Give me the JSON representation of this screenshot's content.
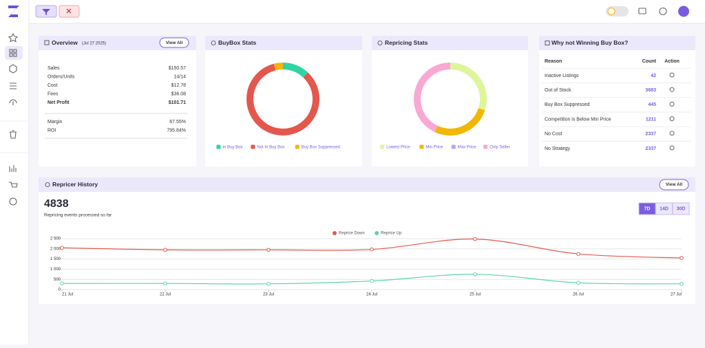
{
  "overview": {
    "title": "Overview",
    "date": "(Jul 27 2025)",
    "button": "View All",
    "rows": [
      [
        "Sales",
        "$150.57"
      ],
      [
        "Orders/Units",
        "14/14"
      ],
      [
        "Cost",
        "$12.78"
      ],
      [
        "Fees",
        "$36.08"
      ],
      [
        "Net Profit",
        "$101.71"
      ]
    ],
    "rows2": [
      [
        "Margin",
        "67.55%"
      ],
      [
        "ROI",
        "795.84%"
      ]
    ]
  },
  "why_not": {
    "title": "Why not Winning Buy Box?",
    "columns": [
      "Reason",
      "Count",
      "Action"
    ],
    "rows": [
      [
        "Inactive Listings",
        42
      ],
      [
        "Out of Stock",
        3683
      ],
      [
        "Buy Box Suppressed",
        445
      ],
      [
        "Competition is Below Min Price",
        1211
      ],
      [
        "No Cost",
        2337
      ],
      [
        "No Strategy",
        2337
      ]
    ]
  },
  "history": {
    "title": "Repricer History",
    "button": "View All",
    "total": 4838,
    "caption": "Repricing events processed so far",
    "ranges": [
      "7D",
      "14D",
      "30D"
    ]
  },
  "chart_data": [
    {
      "type": "donut",
      "title": "BuyBox Stats",
      "categories": [
        "In Buy Box",
        "Not In Buy Box",
        "Buy Box Suppressed"
      ],
      "values": [
        12,
        84,
        4
      ],
      "colors": [
        "#2dd4a4",
        "#e4574c",
        "#f5b40e"
      ]
    },
    {
      "type": "donut",
      "title": "Repricing Stats",
      "categories": [
        "Lowest Price",
        "Min Price",
        "Max Price",
        "Only Seller"
      ],
      "values": [
        30,
        27,
        0,
        43
      ],
      "colors": [
        "#dff59a",
        "#f2b705",
        "#b7a5f5",
        "#f9a8d4"
      ]
    },
    {
      "type": "line",
      "categories": [
        "21 Jul",
        "22 Jul",
        "23 Jul",
        "24 Jul",
        "25 Jul",
        "26 Jul",
        "27 Jul"
      ],
      "series": [
        {
          "name": "Reprice Down",
          "color": "#e4574c",
          "values": [
            2050,
            1950,
            1950,
            1970,
            2480,
            1750,
            1550
          ]
        },
        {
          "name": "Reprice Up",
          "color": "#5fd3aa",
          "values": [
            300,
            300,
            280,
            420,
            750,
            330,
            280
          ]
        }
      ],
      "ylim": [
        0,
        2500
      ],
      "yticks": [
        0,
        500,
        {
          "value": 1000,
          "label": "1 000"
        },
        {
          "value": 1500,
          "label": "1 500"
        },
        {
          "value": 2000,
          "label": "2 000"
        },
        {
          "value": 2500,
          "label": "2 500"
        }
      ],
      "grid": true
    }
  ]
}
